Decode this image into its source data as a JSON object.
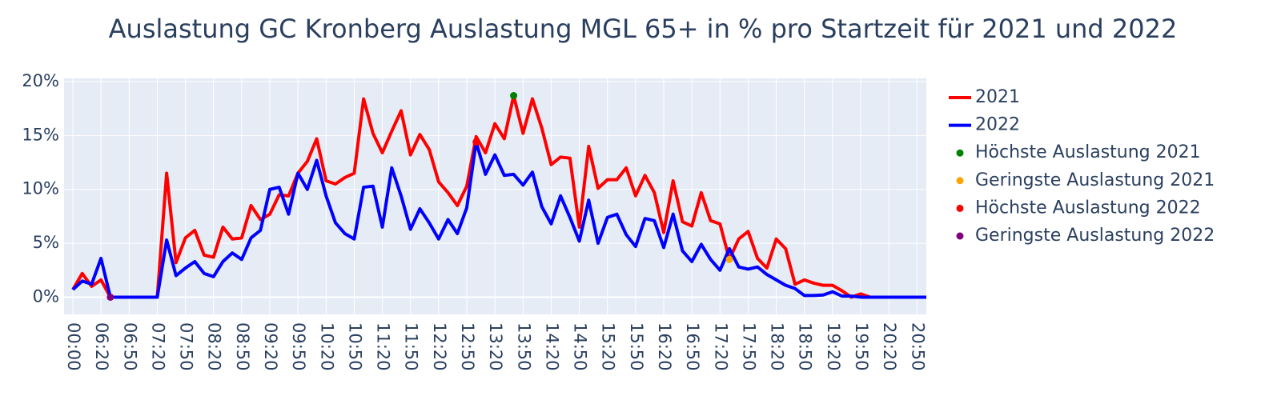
{
  "chart_data": {
    "type": "line",
    "title": "Auslastung GC Kronberg Auslastung MGL 65+ in % pro Startzeit für 2021 und 2022",
    "categories": [
      "00:00",
      null,
      null,
      "06:20",
      null,
      null,
      "06:50",
      null,
      null,
      "07:20",
      null,
      null,
      "07:50",
      null,
      null,
      "08:20",
      null,
      null,
      "08:50",
      null,
      null,
      "09:20",
      null,
      null,
      "09:50",
      null,
      null,
      "10:20",
      null,
      null,
      "10:50",
      null,
      null,
      "11:20",
      null,
      null,
      "11:50",
      null,
      null,
      "12:20",
      null,
      null,
      "12:50",
      null,
      null,
      "13:20",
      null,
      null,
      "13:50",
      null,
      null,
      "14:20",
      null,
      null,
      "14:50",
      null,
      null,
      "15:20",
      null,
      null,
      "15:50",
      null,
      null,
      "16:20",
      null,
      null,
      "16:50",
      null,
      null,
      "17:20",
      null,
      null,
      "17:50",
      null,
      null,
      "18:20",
      null,
      null,
      "18:50",
      null,
      null,
      "19:20",
      null,
      null,
      "19:50",
      null,
      null,
      "20:20",
      null,
      null,
      "20:50",
      null
    ],
    "ylim": [
      -1.6,
      20.3
    ],
    "yticks": [
      {
        "value": 0,
        "label": "0%"
      },
      {
        "value": 5,
        "label": "5%"
      },
      {
        "value": 10,
        "label": "10%"
      },
      {
        "value": 15,
        "label": "15%"
      },
      {
        "value": 20,
        "label": "20%"
      }
    ],
    "grid": true,
    "legend": "right",
    "series": [
      {
        "name": "2021",
        "color": "#ff0000",
        "mode": "lines",
        "values": [
          0.7,
          2.2,
          1.0,
          1.6,
          0,
          0,
          0,
          0,
          0,
          0,
          11.5,
          3.2,
          5.5,
          6.2,
          3.9,
          3.7,
          6.5,
          5.4,
          5.5,
          8.5,
          7.2,
          7.7,
          9.5,
          9.4,
          11.5,
          12.6,
          14.7,
          10.8,
          10.5,
          11.1,
          11.5,
          18.4,
          15.2,
          13.4,
          15.4,
          17.3,
          13.2,
          15.1,
          13.7,
          10.7,
          9.7,
          8.5,
          10.3,
          14.9,
          13.4,
          16.1,
          14.7,
          18.7,
          15.2,
          18.4,
          15.7,
          12.3,
          13.0,
          12.9,
          6.5,
          14.0,
          10.1,
          10.9,
          10.9,
          12.0,
          9.4,
          11.3,
          9.7,
          6.0,
          10.8,
          7.0,
          6.6,
          9.7,
          7.1,
          6.8,
          3.5,
          5.4,
          6.1,
          3.6,
          2.7,
          5.4,
          4.5,
          1.2,
          1.6,
          1.3,
          1.1,
          1.1,
          0.6,
          0,
          0.3,
          0,
          0,
          0,
          0,
          0,
          0,
          0
        ]
      },
      {
        "name": "2022",
        "color": "#0000ff",
        "mode": "lines",
        "values": [
          0.7,
          1.5,
          1.2,
          3.6,
          0,
          0,
          0,
          0,
          0,
          0,
          5.3,
          2.0,
          2.7,
          3.3,
          2.2,
          1.9,
          3.3,
          4.1,
          3.5,
          5.5,
          6.2,
          10.0,
          10.2,
          7.7,
          11.5,
          10.0,
          12.7,
          9.4,
          6.9,
          5.9,
          5.4,
          10.2,
          10.3,
          6.5,
          12.0,
          9.4,
          6.3,
          8.2,
          6.9,
          5.4,
          7.2,
          5.9,
          8.3,
          14.4,
          11.4,
          13.2,
          11.3,
          11.4,
          10.4,
          11.6,
          8.4,
          6.8,
          9.4,
          7.4,
          5.2,
          9.0,
          5.0,
          7.4,
          7.7,
          5.8,
          4.7,
          7.3,
          7.1,
          4.6,
          7.7,
          4.3,
          3.3,
          4.9,
          3.5,
          2.5,
          4.5,
          2.8,
          2.6,
          2.8,
          2.1,
          1.6,
          1.1,
          0.8,
          0.15,
          0.15,
          0.2,
          0.5,
          0.1,
          0.1,
          0,
          0,
          0,
          0,
          0,
          0,
          0,
          0
        ]
      },
      {
        "name": "Höchste Auslastung 2021",
        "color": "#008000",
        "mode": "markers",
        "values": [
          null,
          null,
          null,
          null,
          null,
          null,
          null,
          null,
          null,
          null,
          null,
          null,
          null,
          null,
          null,
          null,
          null,
          null,
          null,
          null,
          null,
          null,
          null,
          null,
          null,
          null,
          null,
          null,
          null,
          null,
          null,
          null,
          null,
          null,
          null,
          null,
          null,
          null,
          null,
          null,
          null,
          null,
          null,
          null,
          null,
          null,
          null,
          18.7,
          null,
          null,
          null,
          null,
          null,
          null,
          null,
          null,
          null,
          null,
          null,
          null,
          null,
          null,
          null,
          null,
          null,
          null,
          null,
          null,
          null,
          null,
          null,
          null,
          null,
          null,
          null,
          null,
          null,
          null,
          null,
          null,
          null,
          null,
          null,
          null,
          null,
          null,
          null,
          null,
          null,
          null,
          null,
          null
        ]
      },
      {
        "name": "Geringste Auslastung 2021",
        "color": "#ffa500",
        "mode": "markers",
        "values": [
          null,
          null,
          null,
          null,
          null,
          null,
          null,
          null,
          null,
          null,
          null,
          null,
          null,
          null,
          null,
          null,
          null,
          null,
          null,
          null,
          null,
          null,
          null,
          null,
          null,
          null,
          null,
          null,
          null,
          null,
          null,
          null,
          null,
          null,
          null,
          null,
          null,
          null,
          null,
          null,
          null,
          null,
          null,
          null,
          null,
          null,
          null,
          null,
          null,
          null,
          null,
          null,
          null,
          null,
          null,
          null,
          null,
          null,
          null,
          null,
          null,
          null,
          null,
          null,
          null,
          null,
          null,
          null,
          null,
          null,
          3.5,
          null,
          null,
          null,
          null,
          null,
          null,
          null,
          null,
          null,
          null,
          null,
          null,
          null,
          null,
          null,
          null,
          null,
          null,
          null,
          null,
          null
        ]
      },
      {
        "name": "Höchste Auslastung 2022",
        "color": "#ff0000",
        "mode": "markers",
        "values": [
          null,
          null,
          null,
          null,
          null,
          null,
          null,
          null,
          null,
          null,
          null,
          null,
          null,
          null,
          null,
          null,
          null,
          null,
          null,
          null,
          null,
          null,
          null,
          null,
          null,
          null,
          null,
          null,
          null,
          null,
          null,
          null,
          null,
          null,
          null,
          null,
          null,
          null,
          null,
          null,
          null,
          null,
          null,
          14.4,
          null,
          null,
          null,
          null,
          null,
          null,
          null,
          null,
          null,
          null,
          null,
          null,
          null,
          null,
          null,
          null,
          null,
          null,
          null,
          null,
          null,
          null,
          null,
          null,
          null,
          null,
          null,
          null,
          null,
          null,
          null,
          null,
          null,
          null,
          null,
          null,
          null,
          null,
          null,
          null,
          null,
          null,
          null,
          null,
          null,
          null,
          null,
          null
        ]
      },
      {
        "name": "Geringste Auslastung 2022",
        "color": "#800080",
        "mode": "markers",
        "values": [
          null,
          null,
          null,
          null,
          0,
          null,
          null,
          null,
          null,
          null,
          null,
          null,
          null,
          null,
          null,
          null,
          null,
          null,
          null,
          null,
          null,
          null,
          null,
          null,
          null,
          null,
          null,
          null,
          null,
          null,
          null,
          null,
          null,
          null,
          null,
          null,
          null,
          null,
          null,
          null,
          null,
          null,
          null,
          null,
          null,
          null,
          null,
          null,
          null,
          null,
          null,
          null,
          null,
          null,
          null,
          null,
          null,
          null,
          null,
          null,
          null,
          null,
          null,
          null,
          null,
          null,
          null,
          null,
          null,
          null,
          null,
          null,
          null,
          null,
          null,
          null,
          null,
          null,
          null,
          null,
          null,
          null,
          null,
          null,
          null,
          null,
          null,
          null,
          null,
          null,
          null,
          null
        ]
      }
    ]
  }
}
